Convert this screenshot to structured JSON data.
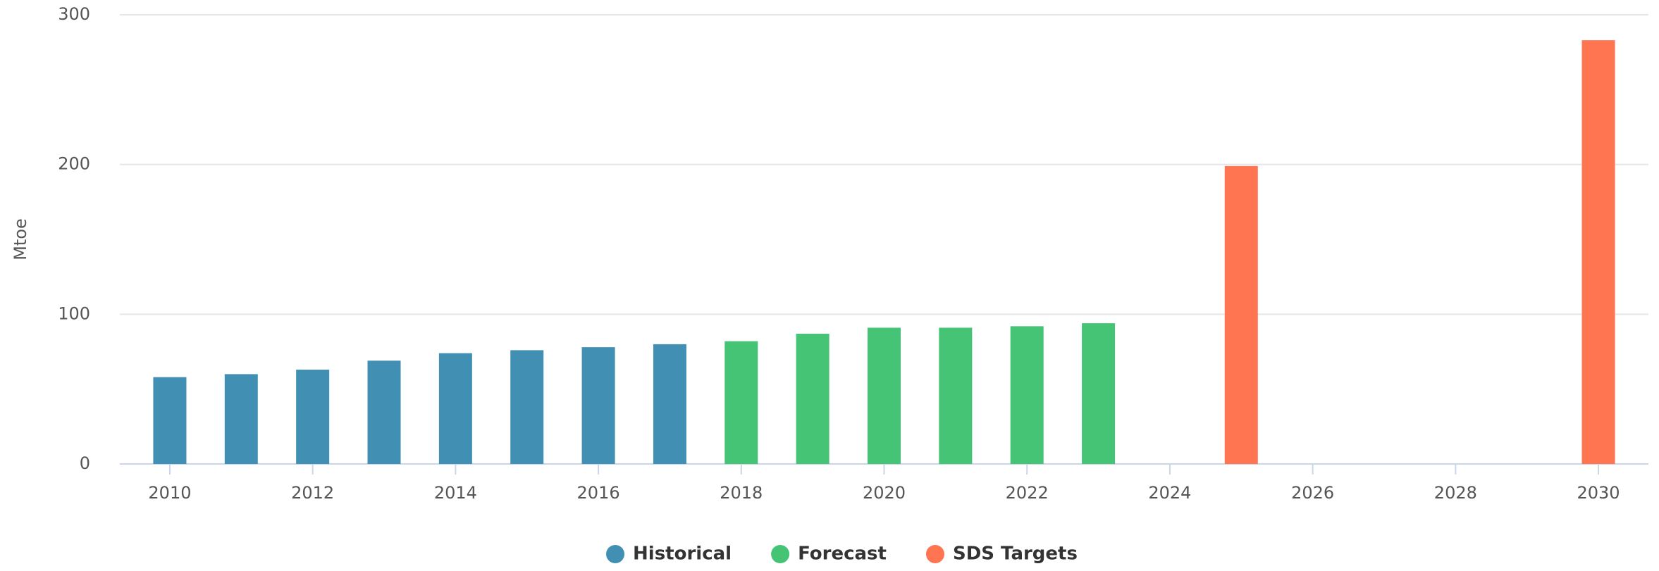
{
  "chart_data": {
    "type": "bar",
    "y_label": "Mtoe",
    "xlim": [
      2009.3,
      2030.7
    ],
    "xticks": [
      2010,
      2012,
      2014,
      2016,
      2018,
      2020,
      2022,
      2024,
      2026,
      2028,
      2030
    ],
    "ylim": [
      0,
      300
    ],
    "yticks": [
      0,
      100,
      200,
      300
    ],
    "grid": true,
    "legend": "bottom",
    "series": [
      {
        "name": "Historical",
        "color": "#4190b3",
        "x": [
          2010,
          2011,
          2012,
          2013,
          2014,
          2015,
          2016,
          2017
        ],
        "values": [
          58,
          60,
          63,
          69,
          74,
          76,
          78,
          80
        ]
      },
      {
        "name": "Forecast",
        "color": "#45c476",
        "x": [
          2018,
          2019,
          2020,
          2021,
          2022,
          2023
        ],
        "values": [
          82,
          87,
          91,
          91,
          92,
          94
        ]
      },
      {
        "name": "SDS Targets",
        "color": "#ff7552",
        "x": [
          2025,
          2030
        ],
        "values": [
          199,
          283
        ]
      }
    ]
  }
}
